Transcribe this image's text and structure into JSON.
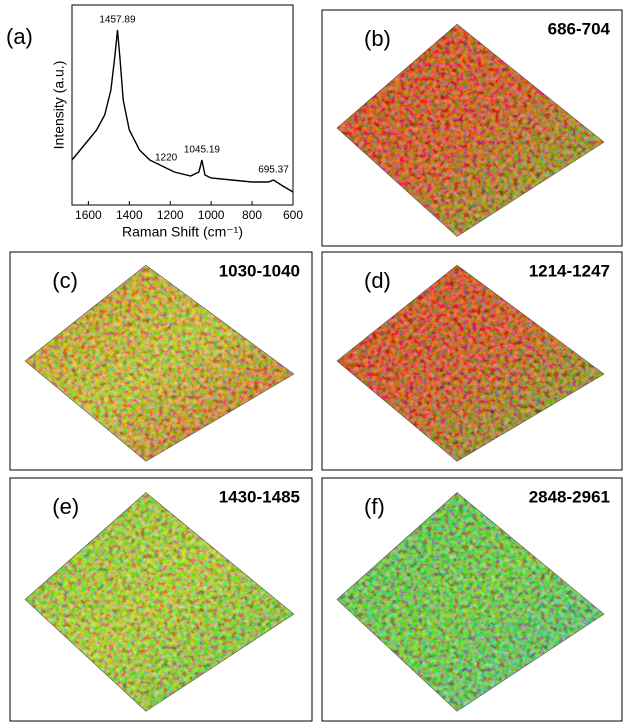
{
  "chart_data": {
    "type": "line",
    "panel_label": "(a)",
    "x_label": "Raman Shift (cm⁻¹)",
    "y_label": "Intensity (a.u.)",
    "x": [
      1680,
      1640,
      1600,
      1560,
      1520,
      1490,
      1470,
      1457.89,
      1445,
      1430,
      1400,
      1350,
      1300,
      1250,
      1220,
      1180,
      1100,
      1060,
      1045.19,
      1030,
      1000,
      900,
      800,
      720,
      695.37,
      650,
      600
    ],
    "values": [
      22.5,
      27.5,
      32.5,
      37.5,
      45,
      57.5,
      75,
      87.5,
      72.5,
      52.5,
      37.5,
      27.5,
      22.5,
      20,
      18.5,
      16.5,
      14.5,
      16.5,
      22.5,
      15,
      13.5,
      12.5,
      11.5,
      11.5,
      12.5,
      9.5,
      6.5
    ],
    "color": "#000000",
    "xlim": [
      1680,
      600
    ],
    "xticks": [
      1600,
      1400,
      1200,
      1000,
      800,
      600
    ],
    "ylim": [
      0,
      100
    ],
    "annotations": [
      {
        "text": "1457.89",
        "x": 1457.89
      },
      {
        "text": "1220",
        "x": 1220
      },
      {
        "text": "1045.19",
        "x": 1045.19
      },
      {
        "text": "695.37",
        "x": 695.37
      }
    ]
  },
  "panels": [
    {
      "label": "(b)",
      "range": "686-704"
    },
    {
      "label": "(c)",
      "range": "1030-1040"
    },
    {
      "label": "(d)",
      "range": "1214-1247"
    },
    {
      "label": "(e)",
      "range": "1430-1485"
    },
    {
      "label": "(f)",
      "range": "2848-2961"
    }
  ]
}
